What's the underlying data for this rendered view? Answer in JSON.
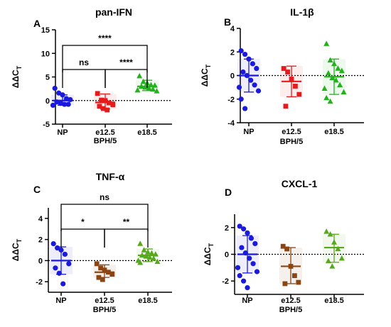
{
  "chart_data": [
    {
      "type": "scatter",
      "panel": "A",
      "title": "pan-IFN",
      "ylabel": "ΔΔC",
      "ylabel_sub": "T",
      "xlabel": "BPH/5",
      "categories": [
        "NP",
        "e12.5",
        "e18.5"
      ],
      "ylim": [
        -5,
        15
      ],
      "yticks": [
        -5,
        0,
        5,
        10,
        15
      ],
      "zero_line": true,
      "series": [
        {
          "category": "NP",
          "color": "#1a1adc",
          "marker": "circle",
          "values": [
            2.6,
            1.6,
            1.2,
            0.4,
            0.2,
            -0.3,
            -0.6,
            -0.8,
            -0.8,
            -1.0
          ],
          "mean": 0.0,
          "sd_low": -1.0,
          "sd_high": 1.2
        },
        {
          "category": "e12.5",
          "color": "#e41a1c",
          "marker": "square",
          "values": [
            1.5,
            0.1,
            0.0,
            -0.5,
            -0.9,
            -1.2,
            -1.7,
            -2.0
          ],
          "mean": -0.4,
          "sd_low": -1.8,
          "sd_high": 1.4
        },
        {
          "category": "e18.5",
          "color": "#22b21c",
          "marker": "triangle",
          "values": [
            5.2,
            4.0,
            3.7,
            3.3,
            3.2,
            3.0,
            2.8,
            2.6,
            2.4,
            2.2,
            2.0
          ],
          "mean": 3.0,
          "sd_low": 2.1,
          "sd_high": 4.3
        }
      ],
      "comparisons": [
        {
          "from": "NP",
          "to": "e12.5",
          "label": "ns",
          "level": 0
        },
        {
          "from": "e12.5",
          "to": "e18.5",
          "label": "****",
          "level": 0
        },
        {
          "from": "NP",
          "to": "e18.5",
          "label": "****",
          "level": 1
        }
      ]
    },
    {
      "type": "scatter",
      "panel": "B",
      "title": "IL-1β",
      "ylabel": "ΔΔC",
      "ylabel_sub": "T",
      "xlabel": "BPH/5",
      "categories": [
        "NP",
        "e12.5",
        "e18.5"
      ],
      "ylim": [
        -4,
        4
      ],
      "yticks": [
        -4,
        -2,
        0,
        2,
        4
      ],
      "zero_line": true,
      "series": [
        {
          "category": "NP",
          "color": "#1a1adc",
          "marker": "circle",
          "values": [
            2.1,
            1.8,
            1.4,
            1.0,
            0.6,
            0.3,
            0.0,
            -0.4,
            -0.8,
            -1.0,
            -1.3,
            -2.0,
            -2.8
          ],
          "mean": 0.0,
          "sd_low": -1.4,
          "sd_high": 1.4
        },
        {
          "category": "e12.5",
          "color": "#e41a1c",
          "marker": "square",
          "values": [
            0.6,
            0.3,
            -0.3,
            -0.9,
            -1.6,
            -2.6
          ],
          "mean": -0.5,
          "sd_low": -1.8,
          "sd_high": 0.8
        },
        {
          "category": "e18.5",
          "color": "#22b21c",
          "marker": "triangle",
          "values": [
            2.7,
            1.3,
            1.0,
            0.6,
            0.4,
            0.2,
            -0.2,
            -0.4,
            -0.8,
            -1.1,
            -1.4,
            -1.9,
            -2.2
          ],
          "mean": -0.1,
          "sd_low": -1.6,
          "sd_high": 1.4
        }
      ],
      "comparisons": []
    },
    {
      "type": "scatter",
      "panel": "C",
      "title": "TNF-α",
      "ylabel": "ΔΔC",
      "ylabel_sub": "T",
      "xlabel": "BPH/5",
      "categories": [
        "NP",
        "e12.5",
        "e18.5"
      ],
      "ylim": [
        -3,
        5
      ],
      "yticks": [
        -2,
        0,
        2,
        4
      ],
      "zero_line": true,
      "series": [
        {
          "category": "NP",
          "color": "#1a1adc",
          "marker": "circle",
          "values": [
            1.6,
            1.2,
            1.0,
            0.6,
            -0.3,
            -0.7,
            -1.2,
            -2.2
          ],
          "mean": 0.0,
          "sd_low": -1.3,
          "sd_high": 1.3
        },
        {
          "category": "e12.5",
          "color": "#8b4513",
          "marker": "square",
          "values": [
            -0.3,
            -0.7,
            -0.9,
            -1.1,
            -1.3,
            -1.6,
            -1.8
          ],
          "mean": -1.1,
          "sd_low": -1.6,
          "sd_high": -0.4
        },
        {
          "category": "e18.5",
          "color": "#57a81c",
          "marker": "triangle",
          "values": [
            1.6,
            1.0,
            0.8,
            0.7,
            0.6,
            0.5,
            0.4,
            0.3,
            0.2,
            0.0,
            -0.1,
            -0.2
          ],
          "mean": 0.5,
          "sd_low": -0.1,
          "sd_high": 1.1
        }
      ],
      "comparisons": [
        {
          "from": "NP",
          "to": "e12.5",
          "label": "*",
          "level": 0
        },
        {
          "from": "e12.5",
          "to": "e18.5",
          "label": "**",
          "level": 0
        },
        {
          "from": "NP",
          "to": "e18.5",
          "label": "ns",
          "level": 1
        }
      ]
    },
    {
      "type": "scatter",
      "panel": "D",
      "title": "CXCL-1",
      "ylabel": "ΔΔC",
      "ylabel_sub": "T",
      "xlabel": "BPH/5",
      "categories": [
        "NP",
        "e12.5",
        "e18.5"
      ],
      "ylim": [
        -3,
        3
      ],
      "yticks": [
        -2,
        0,
        2
      ],
      "zero_line": true,
      "series": [
        {
          "category": "NP",
          "color": "#1a1adc",
          "marker": "circle",
          "values": [
            2.1,
            1.9,
            1.6,
            1.2,
            0.8,
            0.5,
            0.1,
            -0.3,
            -0.7,
            -1.0,
            -1.3,
            -1.6,
            -2.0,
            -2.5
          ],
          "mean": 0.0,
          "sd_low": -1.4,
          "sd_high": 1.4
        },
        {
          "category": "e12.5",
          "color": "#8b4513",
          "marker": "square",
          "values": [
            0.6,
            0.4,
            -0.9,
            -1.6,
            -2.1,
            -2.2
          ],
          "mean": -0.9,
          "sd_low": -2.2,
          "sd_high": 0.5
        },
        {
          "category": "e18.5",
          "color": "#57a81c",
          "marker": "triangle",
          "values": [
            1.7,
            1.5,
            0.9,
            0.4,
            -0.3,
            -0.5,
            -0.9
          ],
          "mean": 0.5,
          "sd_low": -0.6,
          "sd_high": 1.5
        }
      ],
      "comparisons": []
    }
  ]
}
